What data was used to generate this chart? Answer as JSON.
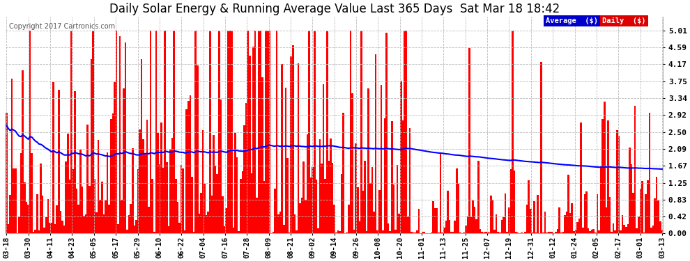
{
  "title": "Daily Solar Energy & Running Average Value Last 365 Days  Sat Mar 18 18:42",
  "copyright_text": "Copyright 2017 Cartronics.com",
  "yticks": [
    0.0,
    0.42,
    0.83,
    1.25,
    1.67,
    2.09,
    2.5,
    2.92,
    3.34,
    3.75,
    4.17,
    4.59,
    5.01
  ],
  "ylim": [
    0.0,
    5.35
  ],
  "bar_color": "#FF0000",
  "avg_color": "#0000FF",
  "bg_color": "#FFFFFF",
  "grid_color": "#BBBBBB",
  "title_fontsize": 12,
  "legend_avg_bg": "#0000CC",
  "legend_daily_bg": "#DD0000",
  "x_labels": [
    "03-18",
    "03-30",
    "04-11",
    "04-23",
    "05-05",
    "05-17",
    "05-29",
    "06-10",
    "06-22",
    "07-04",
    "07-16",
    "07-28",
    "08-09",
    "08-21",
    "09-02",
    "09-14",
    "09-26",
    "10-08",
    "10-20",
    "11-01",
    "11-13",
    "11-25",
    "12-07",
    "12-19",
    "12-31",
    "01-12",
    "01-24",
    "02-05",
    "02-17",
    "03-01",
    "03-13"
  ],
  "num_bars": 365,
  "seed": 12345
}
